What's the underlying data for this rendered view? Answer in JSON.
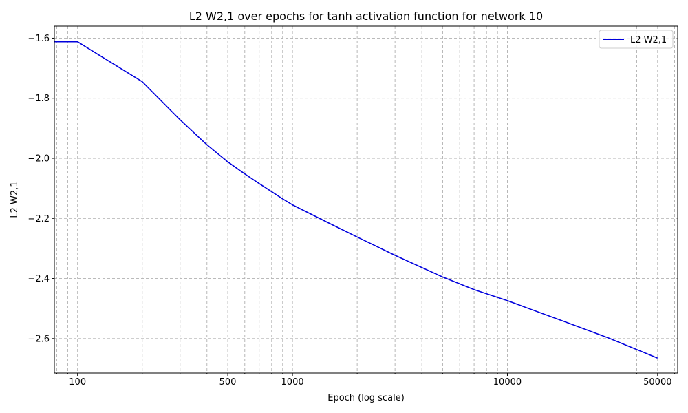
{
  "chart_data": {
    "type": "line",
    "title": "L2 W2,1 over epochs for tanh activation function for network 10",
    "xlabel": "Epoch (log scale)",
    "ylabel": "L2 W2,1",
    "xscale": "log",
    "xlim": [
      78,
      62000
    ],
    "ylim": [
      -2.715,
      -1.56
    ],
    "x_ticks": [
      100,
      500,
      1000,
      10000,
      50000
    ],
    "x_tick_labels": [
      "100",
      "500",
      "1000",
      "10000",
      "50000"
    ],
    "y_ticks": [
      -1.6,
      -1.8,
      -2.0,
      -2.2,
      -2.4,
      -2.6
    ],
    "y_tick_labels": [
      "−1.6",
      "−1.8",
      "−2.0",
      "−2.2",
      "−2.4",
      "−2.6"
    ],
    "grid": true,
    "legend": "top-right",
    "series": [
      {
        "name": "L2 W2,1",
        "color": "#0000dd",
        "x": [
          78,
          100,
          200,
          300,
          400,
          500,
          600,
          700,
          800,
          900,
          1000,
          1500,
          2000,
          3000,
          5000,
          7000,
          10000,
          20000,
          30000,
          50000
        ],
        "y": [
          -1.612,
          -1.612,
          -1.745,
          -1.872,
          -1.955,
          -2.012,
          -2.052,
          -2.084,
          -2.111,
          -2.135,
          -2.155,
          -2.218,
          -2.262,
          -2.323,
          -2.395,
          -2.437,
          -2.474,
          -2.553,
          -2.6,
          -2.665
        ]
      }
    ]
  }
}
